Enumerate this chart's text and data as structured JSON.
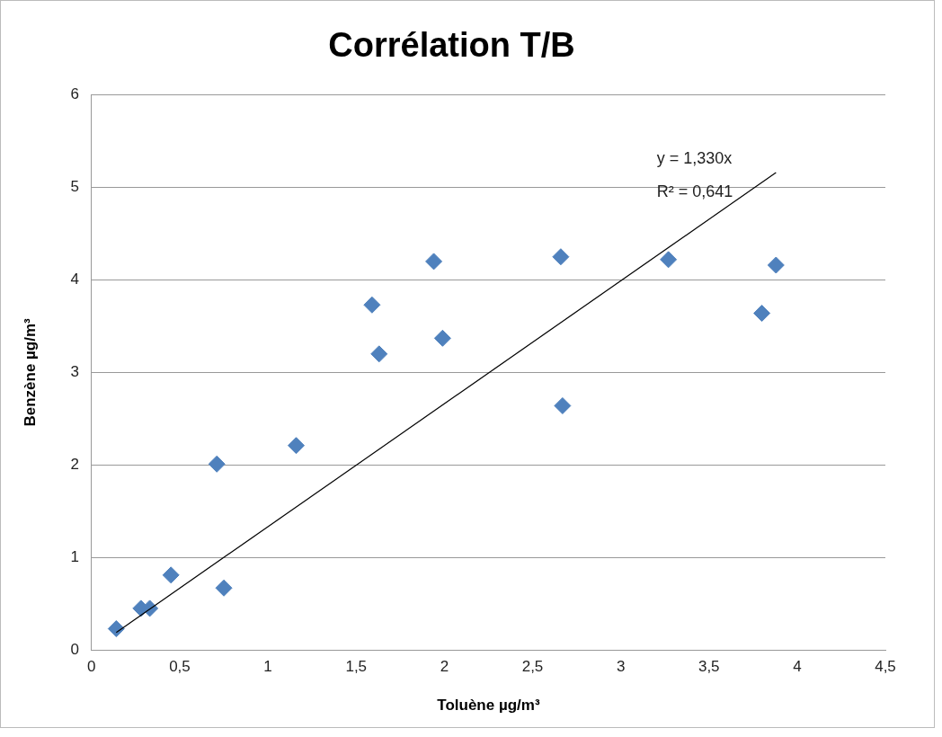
{
  "chart_data": {
    "type": "scatter",
    "title": "Corrélation T/B",
    "xlabel": "Toluène µg/m³",
    "ylabel": "Benzène µg/m³",
    "xlim": [
      0,
      4.5
    ],
    "xticks": [
      0,
      {
        "value": 0.5,
        "label": "0,5"
      },
      1,
      {
        "value": 1.5,
        "label": "1,5"
      },
      2,
      {
        "value": 2.5,
        "label": "2,5"
      },
      3,
      {
        "value": 3.5,
        "label": "3,5"
      },
      4,
      {
        "value": 4.5,
        "label": "4,5"
      }
    ],
    "ylim": [
      0,
      6
    ],
    "yticks": [
      0,
      1,
      2,
      3,
      4,
      5,
      6
    ],
    "grid": "y",
    "legend": false,
    "marker": "diamond",
    "series": [
      {
        "type": "scatter",
        "color": "#4f81bd",
        "x": [
          0.14,
          0.28,
          0.33,
          0.45,
          0.71,
          0.75,
          1.16,
          1.59,
          1.63,
          1.94,
          1.99,
          2.66,
          2.67,
          3.27,
          3.8,
          3.88
        ],
        "values": [
          0.23,
          0.45,
          0.45,
          0.81,
          2.01,
          0.67,
          2.21,
          3.73,
          3.2,
          4.2,
          3.37,
          4.25,
          2.64,
          4.22,
          3.64,
          4.16
        ]
      },
      {
        "type": "line",
        "color": "#000000",
        "marker": "none",
        "x": [
          0.14,
          3.88
        ],
        "values": [
          0.19,
          5.16
        ]
      }
    ],
    "annotations": [
      "y = 1,330x",
      "R² = 0,641"
    ]
  }
}
